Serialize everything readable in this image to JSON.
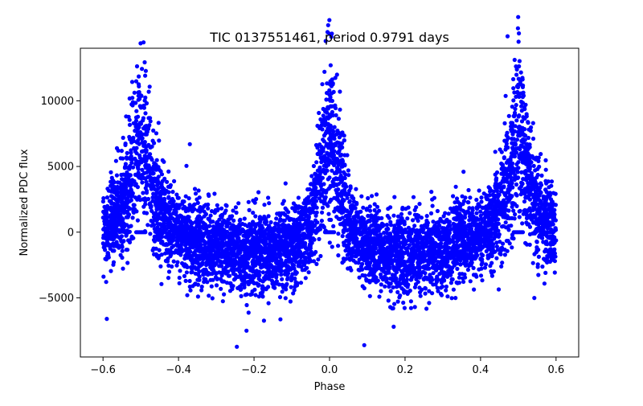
{
  "chart_data": {
    "type": "scatter",
    "title": "TIC 0137551461, period 0.9791 days",
    "xlabel": "Phase",
    "ylabel": "Normalized PDC flux",
    "xlim": [
      -0.66,
      0.66
    ],
    "ylim": [
      -9500,
      14000
    ],
    "xticks": [
      -0.6,
      -0.4,
      -0.2,
      0.0,
      0.2,
      0.4,
      0.6
    ],
    "xtick_labels": [
      "−0.6",
      "−0.4",
      "−0.2",
      "0.0",
      "0.2",
      "0.4",
      "0.6"
    ],
    "yticks": [
      -5000,
      0,
      5000,
      10000
    ],
    "ytick_labels": [
      "−5000",
      "0",
      "5000",
      "10000"
    ],
    "grid": false,
    "legend": "none",
    "marker_color": "#0000ff",
    "x_range": [
      -0.6,
      0.6
    ],
    "envelope": [
      {
        "x": -0.6,
        "y": 0
      },
      {
        "x": -0.55,
        "y": 1500
      },
      {
        "x": -0.5,
        "y": 7500
      },
      {
        "x": -0.45,
        "y": 1500
      },
      {
        "x": -0.4,
        "y": -100
      },
      {
        "x": -0.3,
        "y": -1200
      },
      {
        "x": -0.2,
        "y": -1800
      },
      {
        "x": -0.1,
        "y": -1200
      },
      {
        "x": -0.05,
        "y": 500
      },
      {
        "x": 0.0,
        "y": 8000
      },
      {
        "x": 0.05,
        "y": 500
      },
      {
        "x": 0.1,
        "y": -1200
      },
      {
        "x": 0.2,
        "y": -1800
      },
      {
        "x": 0.3,
        "y": -1200
      },
      {
        "x": 0.4,
        "y": -400
      },
      {
        "x": 0.45,
        "y": 1500
      },
      {
        "x": 0.5,
        "y": 7500
      },
      {
        "x": 0.55,
        "y": 1500
      },
      {
        "x": 0.6,
        "y": 0
      }
    ],
    "scatter_spread": 1500,
    "flat_points": [
      {
        "x": -0.58,
        "y": 0
      },
      {
        "x": -0.5,
        "y": 0
      },
      {
        "x": -0.4,
        "y": 0
      },
      {
        "x": -0.3,
        "y": 0
      },
      {
        "x": -0.2,
        "y": 0
      },
      {
        "x": -0.1,
        "y": 0
      },
      {
        "x": 0.0,
        "y": 0
      },
      {
        "x": 0.1,
        "y": 0
      },
      {
        "x": 0.2,
        "y": 0
      },
      {
        "x": 0.3,
        "y": 0
      },
      {
        "x": 0.4,
        "y": 0
      },
      {
        "x": 0.5,
        "y": 0
      },
      {
        "x": 0.58,
        "y": 0
      }
    ],
    "outliers": [
      {
        "x": 0.003,
        "y": 12700
      },
      {
        "x": -0.505,
        "y": 11100
      },
      {
        "x": 0.497,
        "y": 11100
      },
      {
        "x": 0.092,
        "y": -8600
      },
      {
        "x": -0.22,
        "y": -7500
      },
      {
        "x": -0.59,
        "y": -6600
      },
      {
        "x": 0.17,
        "y": -7200
      },
      {
        "x": -0.37,
        "y": 6700
      },
      {
        "x": 0.355,
        "y": 4600
      }
    ]
  }
}
